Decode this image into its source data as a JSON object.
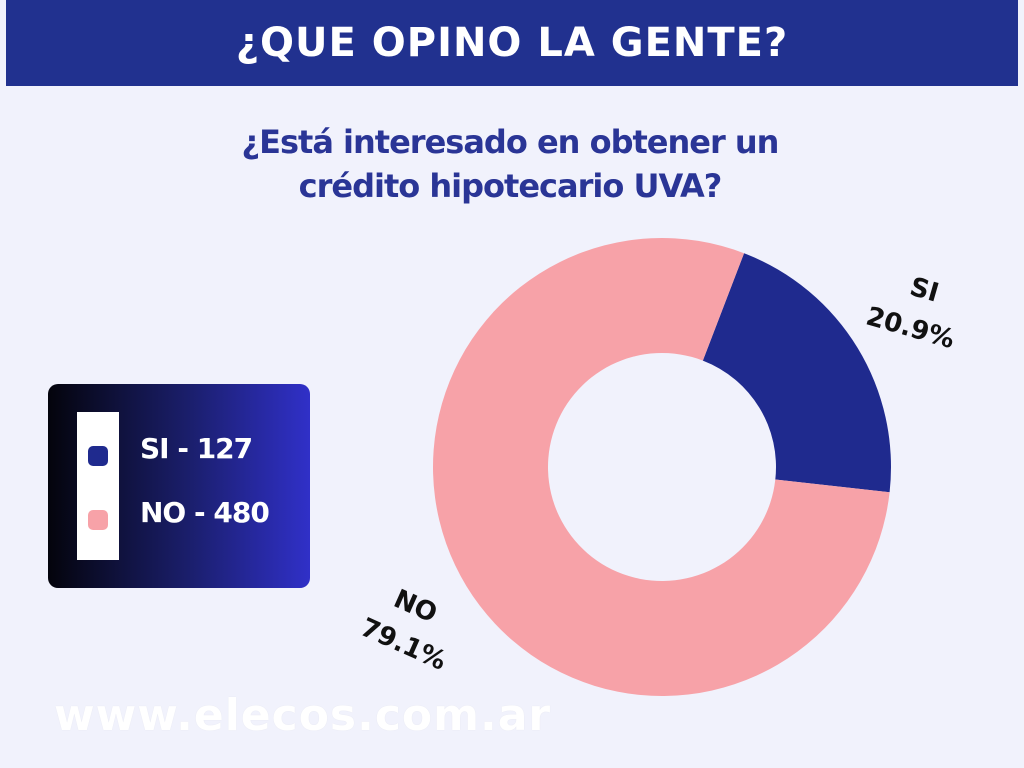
{
  "banner": {
    "title": "¿QUE OPINO LA GENTE?"
  },
  "footer": {
    "url": "www.elecos.com.ar"
  },
  "colors": {
    "banner": "#21318f",
    "si": "#1f2a8e",
    "no": "#f7a2a8",
    "question": "#2a3596"
  },
  "chart_data": {
    "type": "pie",
    "donut": true,
    "title": "¿Está interesado en obtener un crédito hipotecario UVA?",
    "legend_position": "left",
    "slices": [
      {
        "name": "SI",
        "count": 127,
        "percent": 20.9,
        "legend_text": "SI - 127",
        "pct_text": "20.9%",
        "color": "#1f2a8e"
      },
      {
        "name": "NO",
        "count": 480,
        "percent": 79.1,
        "legend_text": "NO - 480",
        "pct_text": "79.1%",
        "color": "#f7a2a8"
      }
    ]
  }
}
